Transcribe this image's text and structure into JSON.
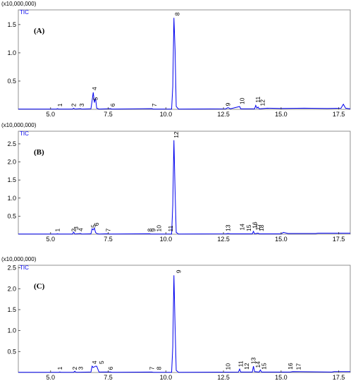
{
  "chart_data": [
    {
      "type": "line",
      "multiplier": "(x10,000,000)",
      "panel_label": "(A)",
      "x": [
        3.6,
        5.25,
        5.3,
        5.35,
        5.95,
        6.0,
        6.05,
        6.3,
        6.35,
        6.75,
        6.8,
        6.85,
        6.9,
        6.95,
        7.0,
        7.1,
        7.6,
        7.65,
        9.4,
        9.45,
        10.25,
        10.3,
        10.35,
        10.4,
        10.45,
        10.55,
        12.6,
        12.7,
        12.8,
        13.2,
        13.25,
        13.85,
        13.9,
        13.95,
        14.0,
        14.05,
        14.4,
        15.0,
        16.0,
        17.0,
        17.6,
        17.7,
        17.8,
        18.0
      ],
      "series": [
        {
          "name": "TIC",
          "color": "#0000ee",
          "values": [
            0.005,
            0.005,
            0.012,
            0.005,
            0.005,
            0.02,
            0.005,
            0.012,
            0.005,
            0.01,
            0.15,
            0.3,
            0.12,
            0.2,
            0.02,
            0.005,
            0.012,
            0.005,
            0.012,
            0.005,
            0.005,
            0.4,
            1.62,
            1.05,
            0.05,
            0.005,
            0.01,
            0.03,
            0.01,
            0.05,
            0.01,
            0.01,
            0.07,
            0.02,
            0.04,
            0.01,
            0.02,
            0.015,
            0.02,
            0.015,
            0.02,
            0.09,
            0.02,
            0.01
          ]
        }
      ],
      "xlim": [
        3.6,
        18.0
      ],
      "ylim": [
        0,
        1.76
      ],
      "xticks": [
        {
          "value": 5,
          "label": "5.0"
        },
        7.5,
        {
          "value": 10,
          "label": "10.0"
        },
        12.5,
        {
          "value": 15,
          "label": "15.0"
        },
        17.5
      ],
      "yticks": [
        0.5,
        {
          "value": 1,
          "label": "1.0"
        },
        1.5
      ],
      "annotations": [
        {
          "label": "1",
          "x": 5.4,
          "y": 0.01
        },
        {
          "label": "2",
          "x": 6.0,
          "y": 0.01
        },
        {
          "label": "3",
          "x": 6.35,
          "y": 0.01
        },
        {
          "label": "4",
          "x": 6.9,
          "y": 0.3
        },
        {
          "label": "5",
          "x": 6.95,
          "y": 0.12
        },
        {
          "label": "6",
          "x": 7.7,
          "y": 0.01
        },
        {
          "label": "7",
          "x": 9.5,
          "y": 0.01
        },
        {
          "label": "8",
          "x": 10.5,
          "y": 1.62
        },
        {
          "label": "9",
          "x": 12.7,
          "y": 0.02
        },
        {
          "label": "10",
          "x": 13.3,
          "y": 0.05
        },
        {
          "label": "11",
          "x": 14.0,
          "y": 0.08
        },
        {
          "label": "12",
          "x": 14.2,
          "y": 0.02
        }
      ]
    },
    {
      "type": "line",
      "multiplier": "(x10,000,000)",
      "panel_label": "(B)",
      "x": [
        3.6,
        5.25,
        5.3,
        5.35,
        5.95,
        6.0,
        6.05,
        6.3,
        6.35,
        6.75,
        6.8,
        6.85,
        6.9,
        6.95,
        7.0,
        7.1,
        7.5,
        7.55,
        9.3,
        9.35,
        10.25,
        10.3,
        10.35,
        10.4,
        10.45,
        10.55,
        12.6,
        12.7,
        12.8,
        13.75,
        13.8,
        13.85,
        14.0,
        14.05,
        15.0,
        15.1,
        15.3,
        16.5,
        16.6,
        18.0
      ],
      "series": [
        {
          "name": "TIC",
          "color": "#0000ee",
          "values": [
            0.005,
            0.005,
            0.012,
            0.005,
            0.005,
            0.06,
            0.005,
            0.02,
            0.005,
            0.01,
            0.15,
            0.12,
            0.17,
            0.05,
            0.02,
            0.005,
            0.012,
            0.005,
            0.012,
            0.005,
            0.005,
            0.8,
            2.6,
            1.2,
            0.05,
            0.005,
            0.01,
            0.02,
            0.01,
            0.01,
            0.08,
            0.01,
            0.03,
            0.01,
            0.01,
            0.05,
            0.02,
            0.02,
            0.03,
            0.03
          ]
        }
      ],
      "xlim": [
        3.6,
        18.0
      ],
      "ylim": [
        0,
        2.85
      ],
      "xticks": [
        {
          "value": 5,
          "label": "5.0"
        },
        7.5,
        {
          "value": 10,
          "label": "10.0"
        },
        12.5,
        {
          "value": 15,
          "label": "15.0"
        },
        17.5
      ],
      "yticks": [
        0.5,
        {
          "value": 1,
          "label": "1.0"
        },
        1.5,
        {
          "value": 2,
          "label": "2.0"
        },
        2.5
      ],
      "annotations": [
        {
          "label": "1",
          "x": 5.3,
          "y": 0.01
        },
        {
          "label": "2",
          "x": 6.0,
          "y": 0.01
        },
        {
          "label": "3",
          "x": 6.1,
          "y": 0.06
        },
        {
          "label": "4",
          "x": 6.3,
          "y": 0.02
        },
        {
          "label": "5",
          "x": 6.85,
          "y": 0.12
        },
        {
          "label": "6",
          "x": 7.0,
          "y": 0.17
        },
        {
          "label": "7",
          "x": 7.5,
          "y": 0.01
        },
        {
          "label": "8",
          "x": 9.3,
          "y": 0.01
        },
        {
          "label": "9",
          "x": 9.45,
          "y": 0.01
        },
        {
          "label": "10",
          "x": 9.7,
          "y": 0.01
        },
        {
          "label": "11",
          "x": 10.2,
          "y": 0.01
        },
        {
          "label": "12",
          "x": 10.45,
          "y": 2.6
        },
        {
          "label": "13",
          "x": 12.7,
          "y": 0.02
        },
        {
          "label": "14",
          "x": 13.3,
          "y": 0.05
        },
        {
          "label": "15",
          "x": 13.6,
          "y": 0.02
        },
        {
          "label": "16",
          "x": 13.85,
          "y": 0.1
        },
        {
          "label": "17",
          "x": 14.0,
          "y": 0.05
        },
        {
          "label": "18",
          "x": 14.15,
          "y": 0.02
        }
      ]
    },
    {
      "type": "line",
      "multiplier": "(x10,000,000)",
      "panel_label": "(C)",
      "x": [
        3.6,
        5.35,
        5.4,
        5.45,
        6.0,
        6.05,
        6.1,
        6.75,
        6.8,
        6.85,
        6.95,
        7.0,
        7.1,
        7.6,
        7.65,
        9.4,
        9.45,
        10.25,
        10.3,
        10.35,
        10.4,
        10.45,
        10.55,
        13.15,
        13.2,
        13.25,
        13.75,
        13.8,
        13.85,
        14.05,
        14.1,
        14.15,
        15.4,
        15.5,
        17.2,
        17.3,
        18.0
      ],
      "series": [
        {
          "name": "TIC",
          "color": "#0000ee",
          "values": [
            0.005,
            0.005,
            0.012,
            0.005,
            0.005,
            0.03,
            0.005,
            0.01,
            0.15,
            0.12,
            0.15,
            0.15,
            0.01,
            0.012,
            0.005,
            0.01,
            0.005,
            0.005,
            0.6,
            2.32,
            1.1,
            0.05,
            0.005,
            0.01,
            0.08,
            0.01,
            0.01,
            0.15,
            0.02,
            0.01,
            0.06,
            0.01,
            0.01,
            0.02,
            0.01,
            0.02,
            0.02
          ]
        }
      ],
      "xlim": [
        3.6,
        18.0
      ],
      "ylim": [
        0,
        2.56
      ],
      "xticks": [
        {
          "value": 5,
          "label": "5.0"
        },
        7.5,
        {
          "value": 10,
          "label": "10.0"
        },
        12.5,
        {
          "value": 15,
          "label": "15.0"
        },
        17.5
      ],
      "yticks": [
        0.5,
        {
          "value": 1,
          "label": "1.0"
        },
        1.5,
        {
          "value": 2,
          "label": "2.0"
        },
        2.5
      ],
      "annotations": [
        {
          "label": "1",
          "x": 5.4,
          "y": 0.01
        },
        {
          "label": "2",
          "x": 6.05,
          "y": 0.01
        },
        {
          "label": "3",
          "x": 6.3,
          "y": 0.01
        },
        {
          "label": "4",
          "x": 6.9,
          "y": 0.15
        },
        {
          "label": "5",
          "x": 7.2,
          "y": 0.15
        },
        {
          "label": "6",
          "x": 7.6,
          "y": 0.01
        },
        {
          "label": "7",
          "x": 9.4,
          "y": 0.01
        },
        {
          "label": "8",
          "x": 9.7,
          "y": 0.01
        },
        {
          "label": "9",
          "x": 10.55,
          "y": 2.32
        },
        {
          "label": "10",
          "x": 12.7,
          "y": 0.01
        },
        {
          "label": "11",
          "x": 13.25,
          "y": 0.08
        },
        {
          "label": "12",
          "x": 13.5,
          "y": 0.02
        },
        {
          "label": "13",
          "x": 13.8,
          "y": 0.15
        },
        {
          "label": "14",
          "x": 14.0,
          "y": 0.06
        },
        {
          "label": "15",
          "x": 14.25,
          "y": 0.02
        },
        {
          "label": "16",
          "x": 15.4,
          "y": 0.02
        },
        {
          "label": "17",
          "x": 15.75,
          "y": 0.01
        }
      ]
    }
  ]
}
